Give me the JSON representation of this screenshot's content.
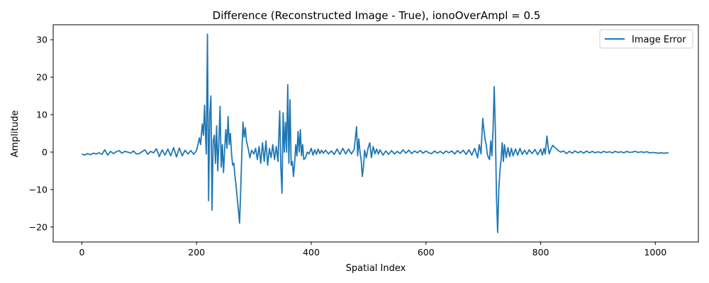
{
  "chart_data": {
    "type": "line",
    "title": "Difference (Reconstructed Image - True), ionoOverAmpl = 0.5",
    "xlabel": "Spatial Index",
    "ylabel": "Amplitude",
    "xlim": [
      -50,
      1075
    ],
    "ylim": [
      -24,
      34
    ],
    "xticks": [
      0,
      200,
      400,
      600,
      800,
      1000
    ],
    "yticks": [
      -20,
      -10,
      0,
      10,
      20,
      30
    ],
    "grid": false,
    "legend_position": "top-right",
    "series": [
      {
        "name": "Image Error",
        "color": "#1f77b4",
        "points": [
          [
            0,
            -0.5
          ],
          [
            5,
            -0.8
          ],
          [
            10,
            -0.4
          ],
          [
            15,
            -0.7
          ],
          [
            20,
            -0.3
          ],
          [
            25,
            -0.5
          ],
          [
            30,
            -0.2
          ],
          [
            35,
            -0.6
          ],
          [
            40,
            0.6
          ],
          [
            45,
            -0.8
          ],
          [
            50,
            0.2
          ],
          [
            55,
            -0.4
          ],
          [
            60,
            0.1
          ],
          [
            65,
            0.4
          ],
          [
            70,
            -0.3
          ],
          [
            75,
            0.2
          ],
          [
            80,
            0.0
          ],
          [
            85,
            -0.3
          ],
          [
            90,
            0.3
          ],
          [
            95,
            -0.5
          ],
          [
            100,
            -0.4
          ],
          [
            105,
            0.1
          ],
          [
            110,
            0.6
          ],
          [
            115,
            -0.6
          ],
          [
            120,
            0.2
          ],
          [
            125,
            -0.2
          ],
          [
            130,
            0.9
          ],
          [
            135,
            -1.2
          ],
          [
            140,
            0.6
          ],
          [
            145,
            -0.8
          ],
          [
            150,
            0.8
          ],
          [
            155,
            -1.0
          ],
          [
            160,
            1.2
          ],
          [
            165,
            -1.3
          ],
          [
            170,
            1.1
          ],
          [
            175,
            -1.0
          ],
          [
            180,
            0.5
          ],
          [
            185,
            -0.5
          ],
          [
            190,
            0.4
          ],
          [
            195,
            -0.6
          ],
          [
            200,
            0.4
          ],
          [
            205,
            3.8
          ],
          [
            207,
            2.0
          ],
          [
            210,
            7.5
          ],
          [
            212,
            4.5
          ],
          [
            214,
            12.5
          ],
          [
            216,
            3.0
          ],
          [
            217,
            -0.5
          ],
          [
            219,
            31.5
          ],
          [
            221,
            -13.0
          ],
          [
            223,
            10.0
          ],
          [
            225,
            15.0
          ],
          [
            227,
            -15.5
          ],
          [
            229,
            3.0
          ],
          [
            231,
            4.5
          ],
          [
            233,
            -3.0
          ],
          [
            235,
            7.0
          ],
          [
            237,
            -5.0
          ],
          [
            239,
            3.0
          ],
          [
            241,
            12.2
          ],
          [
            243,
            -4.0
          ],
          [
            245,
            2.0
          ],
          [
            247,
            -5.5
          ],
          [
            249,
            0.5
          ],
          [
            251,
            6.0
          ],
          [
            253,
            1.0
          ],
          [
            255,
            9.5
          ],
          [
            257,
            2.0
          ],
          [
            259,
            5.0
          ],
          [
            261,
            -0.5
          ],
          [
            263,
            -3.5
          ],
          [
            265,
            -3.0
          ],
          [
            267,
            -6.5
          ],
          [
            269,
            -9.0
          ],
          [
            271,
            -12.5
          ],
          [
            273,
            -15.5
          ],
          [
            275,
            -19.0
          ],
          [
            277,
            -10.0
          ],
          [
            279,
            0.0
          ],
          [
            281,
            8.0
          ],
          [
            283,
            4.0
          ],
          [
            285,
            6.5
          ],
          [
            287,
            3.0
          ],
          [
            290,
            1.0
          ],
          [
            293,
            -1.5
          ],
          [
            296,
            0.5
          ],
          [
            300,
            -0.5
          ],
          [
            303,
            1.0
          ],
          [
            306,
            -2.0
          ],
          [
            309,
            1.5
          ],
          [
            312,
            -3.0
          ],
          [
            315,
            2.5
          ],
          [
            318,
            -2.5
          ],
          [
            321,
            3.0
          ],
          [
            324,
            -3.5
          ],
          [
            327,
            1.0
          ],
          [
            330,
            -1.5
          ],
          [
            333,
            2.0
          ],
          [
            336,
            -2.0
          ],
          [
            339,
            1.5
          ],
          [
            342,
            -2.5
          ],
          [
            345,
            11.0
          ],
          [
            347,
            -4.0
          ],
          [
            349,
            -11.0
          ],
          [
            351,
            10.5
          ],
          [
            353,
            0.0
          ],
          [
            355,
            8.0
          ],
          [
            357,
            0.0
          ],
          [
            359,
            18.0
          ],
          [
            361,
            -3.0
          ],
          [
            363,
            14.0
          ],
          [
            365,
            -3.5
          ],
          [
            367,
            -2.5
          ],
          [
            369,
            -6.5
          ],
          [
            371,
            -3.0
          ],
          [
            373,
            2.0
          ],
          [
            375,
            -1.0
          ],
          [
            377,
            5.5
          ],
          [
            379,
            0.0
          ],
          [
            381,
            6.0
          ],
          [
            383,
            -1.0
          ],
          [
            385,
            2.0
          ],
          [
            387,
            -2.0
          ],
          [
            390,
            -1.5
          ],
          [
            393,
            0.0
          ],
          [
            396,
            -0.5
          ],
          [
            400,
            1.0
          ],
          [
            403,
            -0.8
          ],
          [
            406,
            0.6
          ],
          [
            409,
            -0.6
          ],
          [
            412,
            0.8
          ],
          [
            415,
            -0.4
          ],
          [
            418,
            0.5
          ],
          [
            421,
            -0.3
          ],
          [
            425,
            0.5
          ],
          [
            430,
            -0.5
          ],
          [
            435,
            0.3
          ],
          [
            440,
            -0.6
          ],
          [
            445,
            0.8
          ],
          [
            450,
            -0.6
          ],
          [
            455,
            1.0
          ],
          [
            460,
            -0.5
          ],
          [
            465,
            0.8
          ],
          [
            470,
            -0.5
          ],
          [
            475,
            0.8
          ],
          [
            479,
            6.8
          ],
          [
            481,
            -1.0
          ],
          [
            483,
            3.5
          ],
          [
            485,
            0.0
          ],
          [
            487,
            -2.0
          ],
          [
            489,
            -6.5
          ],
          [
            491,
            -4.0
          ],
          [
            493,
            0.5
          ],
          [
            496,
            -1.5
          ],
          [
            499,
            1.0
          ],
          [
            502,
            2.5
          ],
          [
            505,
            -1.5
          ],
          [
            508,
            1.5
          ],
          [
            511,
            -0.5
          ],
          [
            514,
            0.8
          ],
          [
            517,
            -0.5
          ],
          [
            520,
            0.6
          ],
          [
            525,
            -0.8
          ],
          [
            530,
            0.3
          ],
          [
            535,
            -0.6
          ],
          [
            540,
            0.4
          ],
          [
            545,
            -0.5
          ],
          [
            550,
            0.2
          ],
          [
            555,
            -0.4
          ],
          [
            560,
            0.6
          ],
          [
            565,
            -0.3
          ],
          [
            570,
            0.5
          ],
          [
            575,
            -0.4
          ],
          [
            580,
            0.3
          ],
          [
            585,
            -0.2
          ],
          [
            590,
            0.4
          ],
          [
            595,
            -0.3
          ],
          [
            600,
            0.3
          ],
          [
            605,
            -0.2
          ],
          [
            610,
            -0.4
          ],
          [
            615,
            0.3
          ],
          [
            620,
            -0.3
          ],
          [
            625,
            0.2
          ],
          [
            630,
            -0.4
          ],
          [
            635,
            0.3
          ],
          [
            640,
            -0.2
          ],
          [
            645,
            0.3
          ],
          [
            650,
            -0.5
          ],
          [
            655,
            0.4
          ],
          [
            660,
            -0.3
          ],
          [
            665,
            0.5
          ],
          [
            670,
            -0.6
          ],
          [
            675,
            0.6
          ],
          [
            680,
            -0.8
          ],
          [
            685,
            1.0
          ],
          [
            690,
            -1.5
          ],
          [
            693,
            2.0
          ],
          [
            696,
            -0.5
          ],
          [
            699,
            9.0
          ],
          [
            701,
            6.0
          ],
          [
            703,
            3.5
          ],
          [
            705,
            2.0
          ],
          [
            707,
            -0.5
          ],
          [
            709,
            -1.5
          ],
          [
            711,
            -2.0
          ],
          [
            713,
            3.0
          ],
          [
            715,
            -1.0
          ],
          [
            717,
            6.0
          ],
          [
            719,
            17.5
          ],
          [
            721,
            6.0
          ],
          [
            723,
            -12.0
          ],
          [
            725,
            -21.5
          ],
          [
            727,
            -10.0
          ],
          [
            729,
            -5.0
          ],
          [
            731,
            -2.0
          ],
          [
            733,
            2.5
          ],
          [
            735,
            -2.5
          ],
          [
            737,
            2.0
          ],
          [
            740,
            -1.5
          ],
          [
            743,
            1.2
          ],
          [
            746,
            -1.2
          ],
          [
            749,
            1.0
          ],
          [
            752,
            -1.0
          ],
          [
            756,
            0.8
          ],
          [
            760,
            -0.8
          ],
          [
            764,
            1.0
          ],
          [
            768,
            -0.6
          ],
          [
            772,
            0.5
          ],
          [
            776,
            -0.6
          ],
          [
            780,
            0.6
          ],
          [
            785,
            -0.4
          ],
          [
            790,
            0.7
          ],
          [
            795,
            -0.7
          ],
          [
            800,
            0.8
          ],
          [
            803,
            -0.8
          ],
          [
            806,
            1.0
          ],
          [
            808,
            -0.5
          ],
          [
            811,
            4.3
          ],
          [
            813,
            1.5
          ],
          [
            815,
            -0.5
          ],
          [
            818,
            0.8
          ],
          [
            821,
            1.8
          ],
          [
            825,
            1.2
          ],
          [
            830,
            0.5
          ],
          [
            835,
            0.0
          ],
          [
            840,
            0.3
          ],
          [
            845,
            -0.4
          ],
          [
            850,
            0.2
          ],
          [
            855,
            -0.3
          ],
          [
            860,
            0.3
          ],
          [
            865,
            -0.2
          ],
          [
            870,
            0.2
          ],
          [
            875,
            -0.3
          ],
          [
            880,
            0.3
          ],
          [
            885,
            -0.2
          ],
          [
            890,
            0.2
          ],
          [
            895,
            -0.2
          ],
          [
            900,
            0.1
          ],
          [
            905,
            -0.2
          ],
          [
            910,
            0.2
          ],
          [
            915,
            -0.1
          ],
          [
            920,
            0.1
          ],
          [
            925,
            -0.2
          ],
          [
            930,
            0.2
          ],
          [
            935,
            -0.1
          ],
          [
            940,
            0.1
          ],
          [
            945,
            -0.2
          ],
          [
            950,
            0.2
          ],
          [
            955,
            -0.1
          ],
          [
            960,
            0.0
          ],
          [
            965,
            0.2
          ],
          [
            970,
            -0.1
          ],
          [
            975,
            0.1
          ],
          [
            980,
            -0.1
          ],
          [
            985,
            0.1
          ],
          [
            990,
            -0.2
          ],
          [
            995,
            -0.1
          ],
          [
            1000,
            -0.2
          ],
          [
            1005,
            -0.3
          ],
          [
            1010,
            -0.2
          ],
          [
            1015,
            -0.3
          ],
          [
            1023,
            -0.2
          ]
        ]
      }
    ]
  }
}
